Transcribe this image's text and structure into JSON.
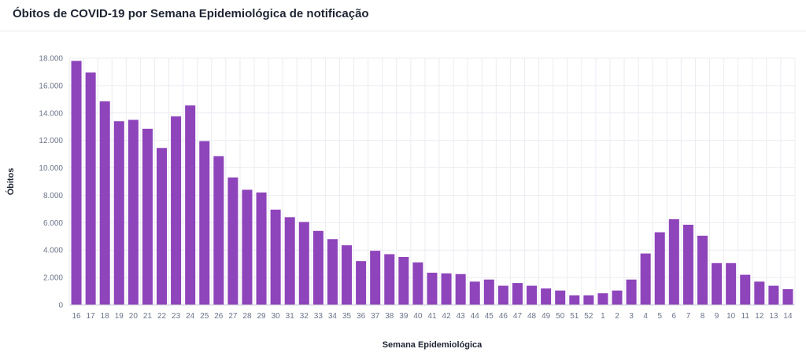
{
  "page": {
    "title": "Óbitos de COVID-19 por Semana Epidemiológica de notificação"
  },
  "colors": {
    "bar": "#8e44bb",
    "grid": "#ececf2",
    "axis": "#c9ccd6"
  },
  "chart_data": {
    "type": "bar",
    "title": "Óbitos de COVID-19 por Semana Epidemiológica de notificação",
    "xlabel": "Semana Epidemiológica",
    "ylabel": "Óbitos",
    "ylim": [
      0,
      18000
    ],
    "yticks": [
      {
        "value": 0,
        "label": "0"
      },
      {
        "value": 2000,
        "label": "2.000"
      },
      {
        "value": 4000,
        "label": "4.000"
      },
      {
        "value": 6000,
        "label": "6.000"
      },
      {
        "value": 8000,
        "label": "8.000"
      },
      {
        "value": 10000,
        "label": "10.000"
      },
      {
        "value": 12000,
        "label": "12.000"
      },
      {
        "value": 14000,
        "label": "14.000"
      },
      {
        "value": 16000,
        "label": "16.000"
      },
      {
        "value": 18000,
        "label": "18.000"
      }
    ],
    "grid": true,
    "legend": "none",
    "categories": [
      "16",
      "17",
      "18",
      "19",
      "20",
      "21",
      "22",
      "23",
      "24",
      "25",
      "26",
      "27",
      "28",
      "29",
      "30",
      "31",
      "32",
      "33",
      "34",
      "35",
      "36",
      "37",
      "38",
      "39",
      "40",
      "41",
      "42",
      "43",
      "44",
      "45",
      "46",
      "47",
      "48",
      "49",
      "50",
      "51",
      "52",
      "1",
      "2",
      "3",
      "4",
      "5",
      "6",
      "7",
      "8",
      "9",
      "10",
      "11",
      "12",
      "13",
      "14"
    ],
    "values": [
      17800,
      16950,
      14850,
      13400,
      13500,
      12850,
      11450,
      13750,
      14550,
      11950,
      10850,
      9300,
      8400,
      8200,
      6950,
      6400,
      6050,
      5400,
      4800,
      4350,
      3200,
      3950,
      3700,
      3500,
      3100,
      2350,
      2300,
      2250,
      1700,
      1850,
      1400,
      1600,
      1400,
      1200,
      1050,
      700,
      700,
      850,
      1050,
      1850,
      3750,
      5300,
      6250,
      5850,
      5050,
      3050,
      3050,
      2200,
      1700,
      1400,
      1150
    ]
  }
}
